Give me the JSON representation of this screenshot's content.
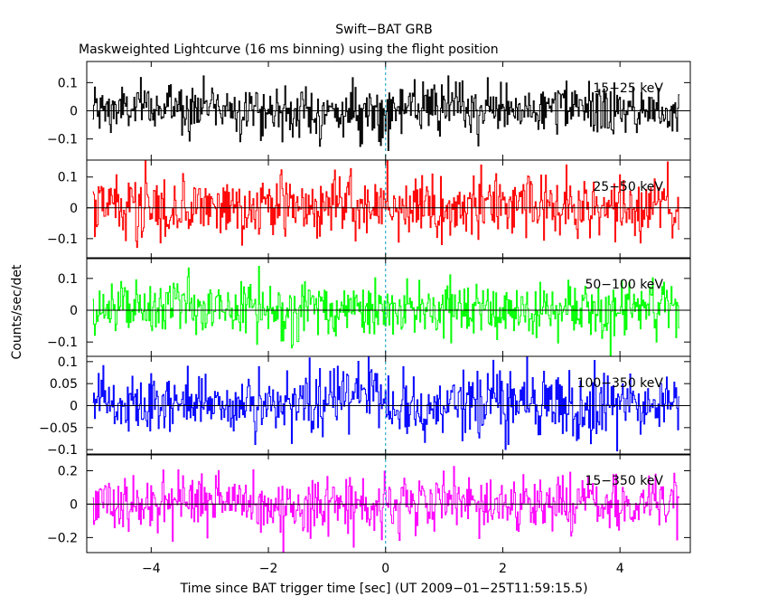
{
  "chart_data": {
    "type": "line",
    "title": "Swift−BAT GRB",
    "subtitle": "Maskweighted Lightcurve (16 ms binning) using the flight position",
    "xlabel": "Time since BAT trigger time [sec] (UT 2009−01−25T11:59:15.5)",
    "ylabel": "Counts/sec/det",
    "xlim": [
      -5.1,
      5.2
    ],
    "x_ticks": [
      {
        "value": -4,
        "label": "−4"
      },
      {
        "value": -2,
        "label": "−2"
      },
      {
        "value": 0,
        "label": "0"
      },
      {
        "value": 2,
        "label": "2"
      },
      {
        "value": 4,
        "label": "4"
      }
    ],
    "trigger_marker_x": 0,
    "grid": false,
    "binning_s": 0.016,
    "panels": [
      {
        "name": "15−25 keV",
        "color": "#000000",
        "ylim": [
          -0.175,
          0.175
        ],
        "y_ticks": [
          {
            "value": 0.1,
            "label": "0.1"
          },
          {
            "value": 0,
            "label": "0"
          },
          {
            "value": -0.1,
            "label": "−0.1"
          }
        ],
        "noise_sigma": 0.045,
        "series_x": [
          -5,
          -4,
          -3,
          -2,
          -1,
          0,
          1,
          2,
          3,
          4,
          5
        ],
        "series_y": [
          0.0,
          0.01,
          0.02,
          0.0,
          -0.01,
          0.0,
          0.01,
          0.0,
          0.01,
          0.0,
          0.0
        ]
      },
      {
        "name": "25−50 keV",
        "color": "#ff0000",
        "ylim": [
          -0.165,
          0.155
        ],
        "y_ticks": [
          {
            "value": 0.1,
            "label": "0.1"
          },
          {
            "value": 0,
            "label": "0"
          },
          {
            "value": -0.1,
            "label": "−0.1"
          }
        ],
        "noise_sigma": 0.05,
        "series_x": [
          -5,
          -4,
          -3,
          -2,
          -1,
          0,
          1,
          2,
          3,
          4,
          5
        ],
        "series_y": [
          0.0,
          0.0,
          0.01,
          0.0,
          0.0,
          0.0,
          0.0,
          0.01,
          0.0,
          0.0,
          0.0
        ]
      },
      {
        "name": "50−100 keV",
        "color": "#00ff00",
        "ylim": [
          -0.145,
          0.165
        ],
        "y_ticks": [
          {
            "value": 0.1,
            "label": "0.1"
          },
          {
            "value": 0,
            "label": "0"
          },
          {
            "value": -0.1,
            "label": "−0.1"
          }
        ],
        "noise_sigma": 0.045,
        "series_x": [
          -5,
          -4,
          -3,
          -2,
          -1,
          0,
          1,
          2,
          3,
          4,
          5
        ],
        "series_y": [
          0.0,
          0.0,
          0.0,
          0.0,
          0.0,
          0.0,
          0.0,
          0.0,
          0.0,
          0.0,
          0.0
        ]
      },
      {
        "name": "100−350 keV",
        "color": "#0000ff",
        "ylim": [
          -0.112,
          0.112
        ],
        "y_ticks": [
          {
            "value": 0.1,
            "label": "0.1"
          },
          {
            "value": 0.05,
            "label": "0.05"
          },
          {
            "value": 0,
            "label": "0"
          },
          {
            "value": -0.05,
            "label": "−0.05"
          },
          {
            "value": -0.1,
            "label": "−0.1"
          }
        ],
        "noise_sigma": 0.035,
        "series_x": [
          -5,
          -4,
          -3,
          -2,
          -1,
          -0.6,
          0,
          1,
          2,
          3,
          4,
          5
        ],
        "series_y": [
          0.0,
          0.0,
          0.01,
          0.0,
          0.01,
          0.04,
          0.0,
          0.0,
          0.01,
          0.0,
          0.0,
          0.0
        ]
      },
      {
        "name": "15−350 keV",
        "color": "#ff00ff",
        "ylim": [
          -0.29,
          0.3
        ],
        "y_ticks": [
          {
            "value": 0.2,
            "label": "0.2"
          },
          {
            "value": 0,
            "label": "0"
          },
          {
            "value": -0.2,
            "label": "−0.2"
          }
        ],
        "noise_sigma": 0.09,
        "series_x": [
          -5,
          -4,
          -3,
          -2,
          -1,
          0,
          1,
          2,
          3,
          4,
          5
        ],
        "series_y": [
          0.0,
          0.02,
          0.02,
          0.0,
          0.0,
          0.0,
          0.01,
          0.01,
          0.02,
          0.0,
          0.0
        ]
      }
    ]
  }
}
